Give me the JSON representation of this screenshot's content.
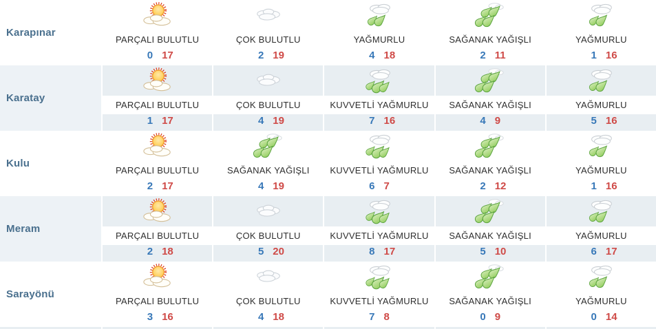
{
  "table": {
    "rows": [
      {
        "city": "Karapınar",
        "cells": [
          {
            "icon": "partly-cloudy-icon",
            "condition": "PARÇALI BULUTLU",
            "min": "0",
            "max": "17"
          },
          {
            "icon": "cloudy-icon",
            "condition": "ÇOK BULUTLU",
            "min": "2",
            "max": "19"
          },
          {
            "icon": "rain-icon",
            "condition": "YAĞMURLU",
            "min": "4",
            "max": "18"
          },
          {
            "icon": "showers-icon",
            "condition": "SAĞANAK YAĞIŞLI",
            "min": "2",
            "max": "11"
          },
          {
            "icon": "rain-icon",
            "condition": "YAĞMURLU",
            "min": "1",
            "max": "16"
          }
        ]
      },
      {
        "city": "Karatay",
        "cells": [
          {
            "icon": "partly-cloudy-icon",
            "condition": "PARÇALI BULUTLU",
            "min": "1",
            "max": "17"
          },
          {
            "icon": "cloudy-icon",
            "condition": "ÇOK BULUTLU",
            "min": "4",
            "max": "19"
          },
          {
            "icon": "heavy-rain-icon",
            "condition": "KUVVETLİ YAĞMURLU",
            "min": "7",
            "max": "16"
          },
          {
            "icon": "showers-icon",
            "condition": "SAĞANAK YAĞIŞLI",
            "min": "4",
            "max": "9"
          },
          {
            "icon": "rain-icon",
            "condition": "YAĞMURLU",
            "min": "5",
            "max": "16"
          }
        ]
      },
      {
        "city": "Kulu",
        "cells": [
          {
            "icon": "partly-cloudy-icon",
            "condition": "PARÇALI BULUTLU",
            "min": "2",
            "max": "17"
          },
          {
            "icon": "showers-icon",
            "condition": "SAĞANAK YAĞIŞLI",
            "min": "4",
            "max": "19"
          },
          {
            "icon": "heavy-rain-icon",
            "condition": "KUVVETLİ YAĞMURLU",
            "min": "6",
            "max": "7"
          },
          {
            "icon": "showers-icon",
            "condition": "SAĞANAK YAĞIŞLI",
            "min": "2",
            "max": "12"
          },
          {
            "icon": "rain-icon",
            "condition": "YAĞMURLU",
            "min": "1",
            "max": "16"
          }
        ]
      },
      {
        "city": "Meram",
        "cells": [
          {
            "icon": "partly-cloudy-icon",
            "condition": "PARÇALI BULUTLU",
            "min": "2",
            "max": "18"
          },
          {
            "icon": "cloudy-icon",
            "condition": "ÇOK BULUTLU",
            "min": "5",
            "max": "20"
          },
          {
            "icon": "heavy-rain-icon",
            "condition": "KUVVETLİ YAĞMURLU",
            "min": "8",
            "max": "17"
          },
          {
            "icon": "showers-icon",
            "condition": "SAĞANAK YAĞIŞLI",
            "min": "5",
            "max": "10"
          },
          {
            "icon": "rain-icon",
            "condition": "YAĞMURLU",
            "min": "6",
            "max": "17"
          }
        ]
      },
      {
        "city": "Sarayönü",
        "cells": [
          {
            "icon": "partly-cloudy-icon",
            "condition": "PARÇALI BULUTLU",
            "min": "3",
            "max": "16"
          },
          {
            "icon": "cloudy-icon",
            "condition": "ÇOK BULUTLU",
            "min": "4",
            "max": "18"
          },
          {
            "icon": "heavy-rain-icon",
            "condition": "KUVVETLİ YAĞMURLU",
            "min": "7",
            "max": "8"
          },
          {
            "icon": "showers-icon",
            "condition": "SAĞANAK YAĞIŞLI",
            "min": "0",
            "max": "9"
          },
          {
            "icon": "rain-icon",
            "condition": "YAĞMURLU",
            "min": "0",
            "max": "14"
          }
        ]
      }
    ],
    "colors": {
      "min_temp": "#3878b8",
      "max_temp": "#cf4a47",
      "city_text": "#4a708e",
      "band_bg": "#e8eef2",
      "band_city_bg": "#edf2f6",
      "drop_green": "#8ecb57",
      "sun_ray_red": "#dd3f22",
      "sun_fill": "#ffcf48"
    }
  }
}
